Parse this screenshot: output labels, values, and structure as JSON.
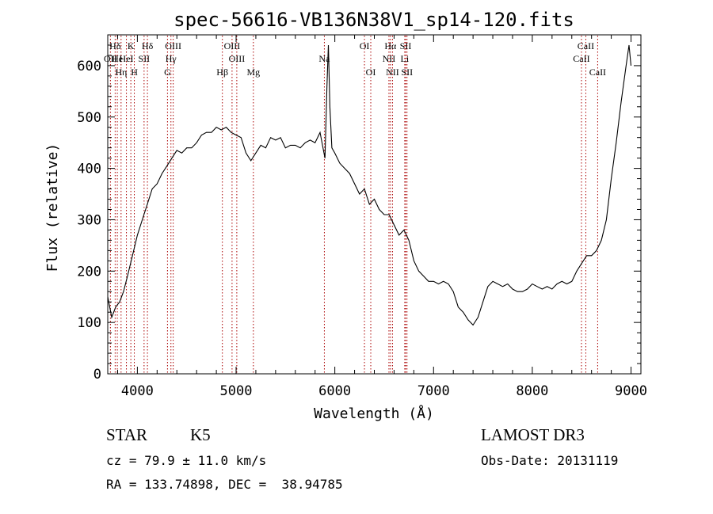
{
  "chart_data": {
    "type": "line",
    "title": "spec-56616-VB136N38V1_sp14-120.fits",
    "xlabel": "Wavelength (Å)",
    "ylabel": "Flux (relative)",
    "xlim": [
      3700,
      9100
    ],
    "ylim": [
      0,
      660
    ],
    "xticks": [
      4000,
      5000,
      6000,
      7000,
      8000,
      9000
    ],
    "yticks": [
      0,
      100,
      200,
      300,
      400,
      500,
      600
    ],
    "grid": false,
    "series": [
      {
        "x": [
          3700,
          3740,
          3780,
          3820,
          3860,
          3900,
          3950,
          4000,
          4050,
          4100,
          4150,
          4200,
          4250,
          4300,
          4350,
          4400,
          4450,
          4500,
          4550,
          4600,
          4650,
          4700,
          4750,
          4800,
          4850,
          4900,
          4950,
          5000,
          5050,
          5100,
          5150,
          5200,
          5250,
          5300,
          5350,
          5400,
          5450,
          5500,
          5550,
          5600,
          5650,
          5700,
          5750,
          5800,
          5850,
          5880,
          5900,
          5920,
          5935,
          5950,
          5970,
          6000,
          6050,
          6100,
          6150,
          6200,
          6250,
          6300,
          6350,
          6400,
          6450,
          6500,
          6550,
          6600,
          6650,
          6700,
          6750,
          6800,
          6850,
          6900,
          6950,
          7000,
          7050,
          7100,
          7150,
          7200,
          7250,
          7300,
          7350,
          7400,
          7450,
          7500,
          7550,
          7600,
          7650,
          7700,
          7750,
          7800,
          7850,
          7900,
          7950,
          8000,
          8050,
          8100,
          8150,
          8200,
          8250,
          8300,
          8350,
          8400,
          8450,
          8500,
          8550,
          8600,
          8650,
          8700,
          8750,
          8800,
          8850,
          8900,
          8950,
          8980,
          9000
        ],
        "y": [
          150,
          110,
          130,
          140,
          160,
          190,
          230,
          270,
          300,
          330,
          360,
          370,
          390,
          405,
          420,
          435,
          430,
          440,
          440,
          450,
          465,
          470,
          470,
          480,
          475,
          480,
          470,
          465,
          460,
          430,
          415,
          430,
          445,
          440,
          460,
          455,
          460,
          440,
          445,
          445,
          440,
          450,
          455,
          450,
          470,
          440,
          420,
          560,
          640,
          520,
          440,
          430,
          410,
          400,
          390,
          370,
          350,
          360,
          330,
          340,
          320,
          310,
          310,
          290,
          270,
          280,
          260,
          220,
          200,
          190,
          180,
          180,
          175,
          180,
          175,
          160,
          130,
          120,
          105,
          95,
          110,
          140,
          170,
          180,
          175,
          170,
          175,
          165,
          160,
          160,
          165,
          175,
          170,
          165,
          170,
          165,
          175,
          180,
          175,
          180,
          200,
          215,
          230,
          230,
          240,
          260,
          300,
          380,
          450,
          530,
          600,
          640,
          600
        ]
      }
    ],
    "lines": [
      {
        "label": "Hδ",
        "x": 3775,
        "row": 1
      },
      {
        "label": "OII",
        "x": 3727,
        "row": 2
      },
      {
        "label": "He",
        "x": 3797,
        "row": 2
      },
      {
        "label": "Hη",
        "x": 3835,
        "row": 3
      },
      {
        "label": "HeI",
        "x": 3889,
        "row": 2
      },
      {
        "label": "K",
        "x": 3934,
        "row": 1
      },
      {
        "label": "SII",
        "x": 4068,
        "row": 2
      },
      {
        "label": "H",
        "x": 3969,
        "row": 3
      },
      {
        "label": "Hδ",
        "x": 4102,
        "row": 1
      },
      {
        "label": "OIII",
        "x": 4363,
        "row": 1
      },
      {
        "label": "Hγ",
        "x": 4340,
        "row": 2
      },
      {
        "label": "G",
        "x": 4305,
        "row": 3
      },
      {
        "label": "Hβ",
        "x": 4861,
        "row": 3
      },
      {
        "label": "OIII",
        "x": 4959,
        "row": 1
      },
      {
        "label": "OIII",
        "x": 5007,
        "row": 2
      },
      {
        "label": "Mg",
        "x": 5175,
        "row": 3
      },
      {
        "label": "Na",
        "x": 5894,
        "row": 2
      },
      {
        "label": "OI",
        "x": 6300,
        "row": 1
      },
      {
        "label": "OI",
        "x": 6364,
        "row": 3
      },
      {
        "label": "Hα",
        "x": 6563,
        "row": 1
      },
      {
        "label": "NII",
        "x": 6548,
        "row": 2
      },
      {
        "label": "NII",
        "x": 6584,
        "row": 3
      },
      {
        "label": "SII",
        "x": 6717,
        "row": 1
      },
      {
        "label": "Li",
        "x": 6708,
        "row": 2
      },
      {
        "label": "SII",
        "x": 6731,
        "row": 3
      },
      {
        "label": "CaII",
        "x": 8542,
        "row": 1
      },
      {
        "label": "CaII",
        "x": 8498,
        "row": 2
      },
      {
        "label": "CaII",
        "x": 8662,
        "row": 3
      }
    ]
  },
  "info": {
    "object_class": "STAR",
    "subclass": "K5",
    "survey": "LAMOST DR3",
    "cz": "cz = 79.9 ± 11.0 km/s",
    "obs_date": "Obs-Date: 20131119",
    "radec": "RA = 133.74898, DEC =  38.94785"
  },
  "colors": {
    "spectrum": "#000000",
    "line_markers": "#aa0000",
    "background": "#ffffff"
  }
}
